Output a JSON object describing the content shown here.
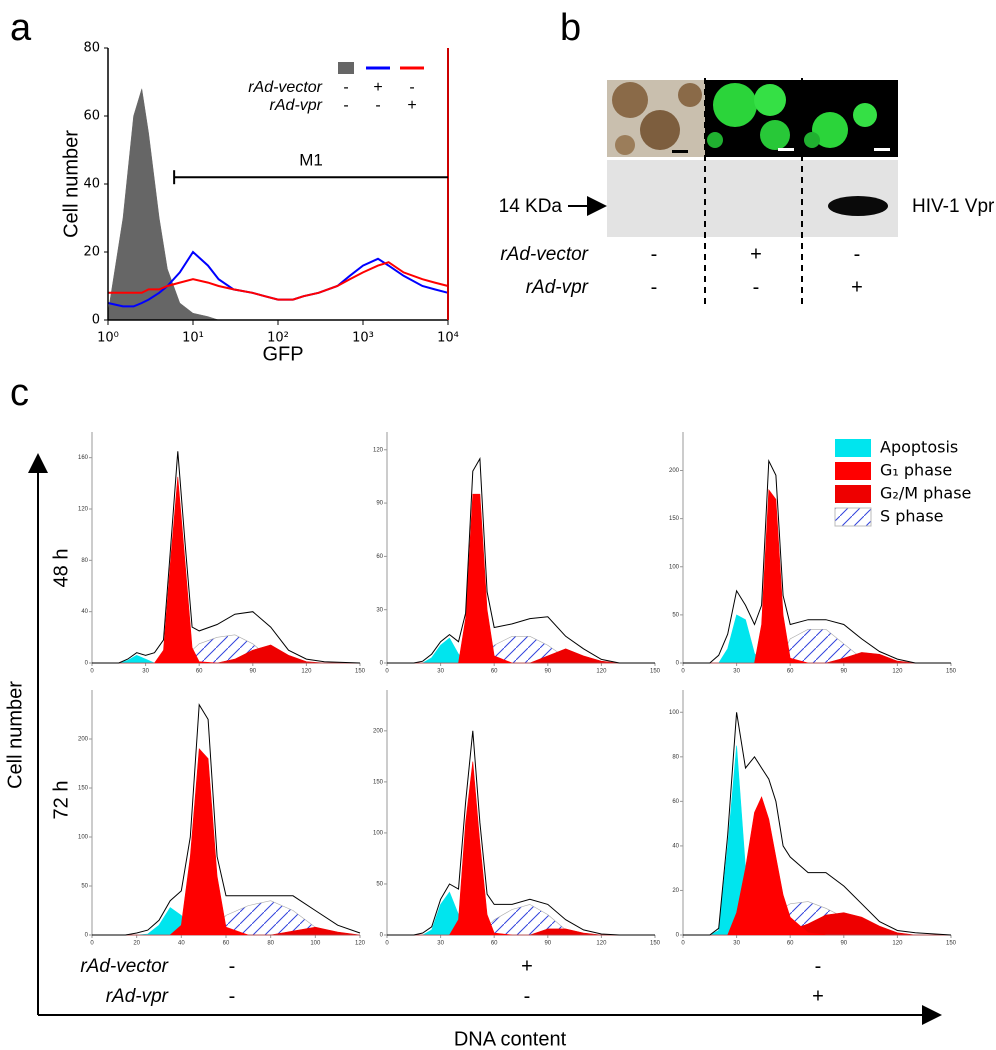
{
  "panel_labels": [
    "a",
    "b",
    "c"
  ],
  "chart_data": [
    {
      "type": "line",
      "ylabel": "Cell number",
      "xlabel": "GFP",
      "xlog": true,
      "xlim": [
        1,
        10000
      ],
      "xticks": [
        {
          "value": 1,
          "label": "10⁰"
        },
        {
          "value": 10,
          "label": "10¹"
        },
        {
          "value": 100,
          "label": "10²"
        },
        {
          "value": 1000,
          "label": "10³"
        },
        {
          "value": 10000,
          "label": "10⁴"
        }
      ],
      "ylim": [
        0,
        80
      ],
      "yticks": [
        0,
        20,
        40,
        60,
        80
      ],
      "x": [
        1,
        1.5,
        2,
        2.5,
        3,
        4,
        5,
        7,
        10,
        15,
        20,
        30,
        50,
        70,
        100,
        150,
        200,
        300,
        500,
        700,
        1000,
        1500,
        2000,
        3000,
        5000,
        7000,
        10000
      ],
      "series": [
        {
          "color": "#666666",
          "fill": true,
          "values": [
            2,
            30,
            60,
            68,
            55,
            30,
            15,
            5,
            2,
            1,
            0,
            0,
            0,
            0,
            0,
            0,
            0,
            0,
            0,
            0,
            0,
            0,
            0,
            0,
            0,
            0,
            0
          ]
        },
        {
          "color": "#0000ff",
          "fill": false,
          "values": [
            5,
            4,
            4,
            5,
            6,
            8,
            10,
            14,
            20,
            16,
            12,
            9,
            8,
            7,
            6,
            6,
            7,
            8,
            10,
            13,
            16,
            18,
            16,
            13,
            10,
            9,
            8
          ]
        },
        {
          "color": "#ff0000",
          "fill": false,
          "values": [
            8,
            8,
            8,
            8,
            9,
            9,
            10,
            11,
            12,
            11,
            10,
            9,
            8,
            7,
            6,
            6,
            7,
            8,
            10,
            12,
            14,
            16,
            17,
            14,
            12,
            11,
            10
          ]
        }
      ],
      "gate": {
        "label": "M1",
        "range": [
          6,
          10000
        ],
        "y": 42
      },
      "legend": [
        {
          "name": "rAd-vector",
          "marks": [
            "-",
            "+",
            "-"
          ]
        },
        {
          "name": "rAd-vpr",
          "marks": [
            "-",
            "-",
            "+"
          ]
        }
      ]
    },
    {
      "type": "area",
      "xlim": [
        0,
        150
      ],
      "xticks": [
        0,
        30,
        60,
        90,
        120,
        150
      ],
      "ylim": [
        0,
        180
      ],
      "yticks": [
        0,
        40,
        80,
        120,
        160
      ],
      "x": [
        0,
        15,
        20,
        25,
        30,
        35,
        40,
        44,
        48,
        52,
        56,
        60,
        70,
        80,
        90,
        100,
        110,
        120,
        130,
        150
      ],
      "series": [
        {
          "values": [
            0,
            0,
            2,
            6,
            3,
            0,
            0,
            0,
            0,
            0,
            0,
            0,
            0,
            0,
            0,
            0,
            0,
            0,
            0,
            0
          ]
        },
        {
          "values": [
            0,
            0,
            0,
            0,
            0,
            0,
            10,
            80,
            145,
            80,
            12,
            1,
            0,
            0,
            0,
            0,
            0,
            0,
            0,
            0
          ]
        },
        {
          "values": [
            0,
            0,
            0,
            0,
            0,
            0,
            0,
            0,
            0,
            0,
            0,
            0,
            0,
            3,
            10,
            14,
            6,
            1,
            0,
            0
          ]
        },
        {
          "values": [
            0,
            0,
            0,
            0,
            0,
            0,
            0,
            0,
            0,
            5,
            10,
            15,
            20,
            22,
            15,
            3,
            0,
            0,
            0,
            0
          ]
        },
        {
          "color": "#000000",
          "values": [
            0,
            0,
            3,
            8,
            6,
            8,
            18,
            90,
            165,
            95,
            28,
            25,
            30,
            38,
            40,
            28,
            10,
            3,
            1,
            0
          ]
        }
      ]
    },
    {
      "type": "area",
      "xlim": [
        0,
        150
      ],
      "xticks": [
        0,
        30,
        60,
        90,
        120,
        150
      ],
      "ylim": [
        0,
        130
      ],
      "yticks": [
        0,
        30,
        60,
        90,
        120
      ],
      "x": [
        0,
        15,
        20,
        25,
        30,
        35,
        40,
        44,
        48,
        52,
        56,
        60,
        70,
        80,
        90,
        100,
        110,
        120,
        130,
        150
      ],
      "series": [
        {
          "values": [
            0,
            0,
            0,
            3,
            10,
            14,
            5,
            0,
            0,
            0,
            0,
            0,
            0,
            0,
            0,
            0,
            0,
            0,
            0,
            0
          ]
        },
        {
          "values": [
            0,
            0,
            0,
            0,
            0,
            0,
            0,
            25,
            95,
            95,
            30,
            4,
            0,
            0,
            0,
            0,
            0,
            0,
            0,
            0
          ]
        },
        {
          "values": [
            0,
            0,
            0,
            0,
            0,
            0,
            0,
            0,
            0,
            0,
            0,
            0,
            0,
            0,
            4,
            8,
            4,
            1,
            0,
            0
          ]
        },
        {
          "values": [
            0,
            0,
            0,
            0,
            0,
            0,
            0,
            0,
            0,
            0,
            5,
            10,
            15,
            15,
            10,
            3,
            0,
            0,
            0,
            0
          ]
        },
        {
          "color": "#000000",
          "values": [
            0,
            0,
            1,
            5,
            12,
            16,
            12,
            28,
            108,
            115,
            40,
            20,
            22,
            25,
            26,
            15,
            8,
            2,
            0,
            0
          ]
        }
      ]
    },
    {
      "type": "area",
      "xlim": [
        0,
        150
      ],
      "xticks": [
        0,
        30,
        60,
        90,
        120,
        150
      ],
      "ylim": [
        0,
        240
      ],
      "yticks": [
        0,
        50,
        100,
        150,
        200
      ],
      "x": [
        0,
        15,
        20,
        25,
        30,
        35,
        40,
        44,
        48,
        52,
        56,
        60,
        70,
        80,
        90,
        100,
        110,
        120,
        130,
        150
      ],
      "series": [
        {
          "values": [
            0,
            0,
            0,
            15,
            50,
            45,
            10,
            2,
            0,
            0,
            0,
            0,
            0,
            0,
            0,
            0,
            0,
            0,
            0,
            0
          ]
        },
        {
          "values": [
            0,
            0,
            0,
            0,
            0,
            0,
            0,
            40,
            180,
            170,
            50,
            5,
            0,
            0,
            0,
            0,
            0,
            0,
            0,
            0
          ]
        },
        {
          "values": [
            0,
            0,
            0,
            0,
            0,
            0,
            0,
            0,
            0,
            0,
            0,
            0,
            0,
            0,
            5,
            11,
            9,
            2,
            0,
            0
          ]
        },
        {
          "values": [
            0,
            0,
            0,
            0,
            0,
            0,
            0,
            0,
            0,
            0,
            10,
            25,
            35,
            35,
            20,
            5,
            0,
            0,
            0,
            0
          ]
        },
        {
          "color": "#000000",
          "values": [
            0,
            0,
            8,
            30,
            75,
            60,
            40,
            60,
            210,
            195,
            70,
            40,
            45,
            45,
            40,
            25,
            12,
            4,
            0,
            0
          ]
        }
      ]
    },
    {
      "type": "area",
      "xlim": [
        0,
        120
      ],
      "xticks": [
        0,
        20,
        40,
        60,
        80,
        100,
        120
      ],
      "ylim": [
        0,
        250
      ],
      "yticks": [
        0,
        50,
        100,
        150,
        200
      ],
      "x": [
        0,
        15,
        20,
        25,
        30,
        35,
        40,
        44,
        48,
        52,
        56,
        60,
        70,
        80,
        90,
        100,
        110,
        120
      ],
      "series": [
        {
          "values": [
            0,
            0,
            0,
            1,
            10,
            28,
            20,
            5,
            0,
            0,
            0,
            0,
            0,
            0,
            0,
            0,
            0,
            0
          ]
        },
        {
          "values": [
            0,
            0,
            0,
            0,
            0,
            0,
            10,
            80,
            190,
            180,
            60,
            8,
            0,
            0,
            0,
            0,
            0,
            0
          ]
        },
        {
          "values": [
            0,
            0,
            0,
            0,
            0,
            0,
            0,
            0,
            0,
            0,
            0,
            0,
            0,
            0,
            4,
            8,
            3,
            0
          ]
        },
        {
          "values": [
            0,
            0,
            0,
            0,
            0,
            0,
            0,
            0,
            0,
            5,
            10,
            20,
            30,
            35,
            25,
            8,
            2,
            0
          ]
        },
        {
          "color": "#000000",
          "values": [
            0,
            0,
            2,
            5,
            15,
            35,
            45,
            100,
            235,
            220,
            80,
            40,
            40,
            40,
            40,
            25,
            10,
            2
          ]
        }
      ]
    },
    {
      "type": "area",
      "xlim": [
        0,
        150
      ],
      "xticks": [
        0,
        30,
        60,
        90,
        120,
        150
      ],
      "ylim": [
        0,
        240
      ],
      "yticks": [
        0,
        50,
        100,
        150,
        200
      ],
      "x": [
        0,
        15,
        20,
        25,
        30,
        35,
        40,
        44,
        48,
        52,
        56,
        60,
        70,
        80,
        90,
        100,
        110,
        120,
        130,
        150
      ],
      "series": [
        {
          "values": [
            0,
            0,
            0,
            5,
            30,
            42,
            20,
            5,
            0,
            0,
            0,
            0,
            0,
            0,
            0,
            0,
            0,
            0,
            0,
            0
          ]
        },
        {
          "values": [
            0,
            0,
            0,
            0,
            0,
            0,
            15,
            110,
            170,
            90,
            20,
            2,
            0,
            0,
            0,
            0,
            0,
            0,
            0,
            0
          ]
        },
        {
          "values": [
            0,
            0,
            0,
            0,
            0,
            0,
            0,
            0,
            0,
            0,
            0,
            0,
            0,
            0,
            6,
            6,
            2,
            0,
            0,
            0
          ]
        },
        {
          "values": [
            0,
            0,
            0,
            0,
            0,
            0,
            0,
            0,
            0,
            0,
            8,
            15,
            25,
            30,
            20,
            5,
            0,
            0,
            0,
            0
          ]
        },
        {
          "color": "#000000",
          "values": [
            0,
            0,
            2,
            8,
            35,
            50,
            45,
            130,
            200,
            110,
            40,
            30,
            30,
            35,
            30,
            15,
            5,
            1,
            0,
            0
          ]
        }
      ]
    },
    {
      "type": "area",
      "xlim": [
        0,
        150
      ],
      "xticks": [
        0,
        30,
        60,
        90,
        120,
        150
      ],
      "ylim": [
        0,
        110
      ],
      "yticks": [
        0,
        20,
        40,
        60,
        80,
        100
      ],
      "x": [
        0,
        15,
        20,
        25,
        30,
        35,
        40,
        44,
        48,
        52,
        56,
        60,
        70,
        80,
        90,
        100,
        110,
        120,
        130,
        150
      ],
      "series": [
        {
          "values": [
            0,
            0,
            2,
            40,
            85,
            30,
            5,
            0,
            0,
            0,
            0,
            0,
            0,
            0,
            0,
            0,
            0,
            0,
            0,
            0
          ]
        },
        {
          "values": [
            0,
            0,
            0,
            0,
            10,
            30,
            55,
            62,
            52,
            35,
            18,
            8,
            1,
            0,
            0,
            0,
            0,
            0,
            0,
            0
          ]
        },
        {
          "values": [
            0,
            0,
            0,
            0,
            0,
            0,
            0,
            0,
            0,
            0,
            0,
            2,
            5,
            9,
            10,
            8,
            4,
            1,
            0,
            0
          ]
        },
        {
          "values": [
            0,
            0,
            0,
            0,
            0,
            0,
            3,
            5,
            8,
            10,
            12,
            14,
            15,
            12,
            8,
            3,
            0,
            0,
            0,
            0
          ]
        },
        {
          "color": "#000000",
          "values": [
            0,
            0,
            3,
            45,
            100,
            75,
            80,
            75,
            70,
            60,
            40,
            35,
            28,
            28,
            22,
            14,
            6,
            2,
            1,
            0
          ]
        }
      ]
    }
  ],
  "blot": {
    "marker": "14 KDa",
    "band": "HIV-1 Vpr"
  },
  "b_rows": [
    {
      "name": "rAd-vector",
      "marks": [
        "-",
        "+",
        "-"
      ]
    },
    {
      "name": "rAd-vpr",
      "marks": [
        "-",
        "-",
        "+"
      ]
    }
  ],
  "c_legend": [
    {
      "name": "Apoptosis",
      "color": "#00e5ee"
    },
    {
      "name": "G₁ phase",
      "color": "#ff0000"
    },
    {
      "name": "G₂/M phase",
      "color": "#ee0000"
    },
    {
      "name": "S phase",
      "color": "#3344dd",
      "hatch": true
    }
  ],
  "c_row_labels": [
    "48 h",
    "72 h"
  ],
  "c_axes": {
    "y": "Cell number",
    "x": "DNA content"
  },
  "c_rows": [
    {
      "name": "rAd-vector",
      "marks": [
        "-",
        "+",
        "-"
      ]
    },
    {
      "name": "rAd-vpr",
      "marks": [
        "-",
        "-",
        "+"
      ]
    }
  ]
}
